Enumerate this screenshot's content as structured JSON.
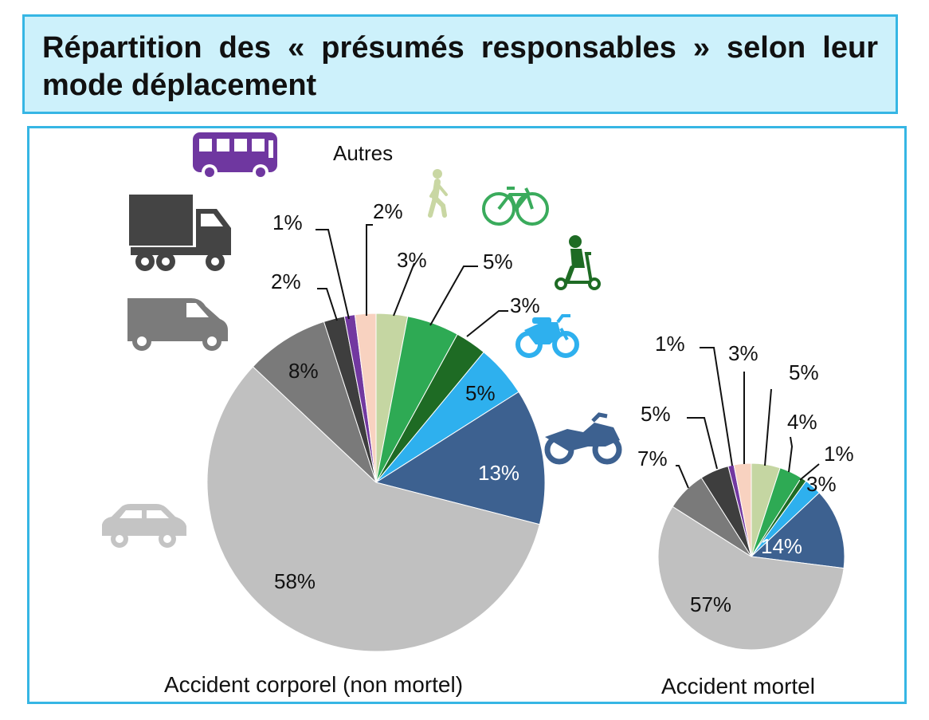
{
  "title": "Répartition des « présumés responsables » selon leur mode déplacement",
  "icons": {
    "bus": "bus-icon",
    "truck": "truck-icon",
    "van": "van-icon",
    "car": "car-icon",
    "pedestrian": "pedestrian-icon",
    "bicycle": "bicycle-icon",
    "scooter": "scooter-icon",
    "moped": "moped-icon",
    "motorcycle": "motorcycle-icon"
  },
  "others_label": "Autres",
  "chart_data": [
    {
      "type": "pie",
      "title": "Accident corporel (non mortel)",
      "start_angle_deg": 0,
      "direction": "clockwise",
      "slices": [
        {
          "name": "Piéton",
          "value": 3,
          "label": "3%",
          "color": "#c5d6a2"
        },
        {
          "name": "Vélo",
          "value": 5,
          "label": "5%",
          "color": "#2eaa54"
        },
        {
          "name": "Trottinette",
          "value": 3,
          "label": "3%",
          "color": "#1e6b24"
        },
        {
          "name": "Cyclomoteur",
          "value": 5,
          "label": "5%",
          "color": "#2eb0ee"
        },
        {
          "name": "Moto",
          "value": 13,
          "label": "13%",
          "color": "#3d6190"
        },
        {
          "name": "Voiture",
          "value": 58,
          "label": "58%",
          "color": "#c0c0c0"
        },
        {
          "name": "Camionnette",
          "value": 8,
          "label": "8%",
          "color": "#7a7a7a"
        },
        {
          "name": "Poids lourd",
          "value": 2,
          "label": "2%",
          "color": "#3e3e3e"
        },
        {
          "name": "Bus",
          "value": 1,
          "label": "1%",
          "color": "#7238a0"
        },
        {
          "name": "Autres",
          "value": 2,
          "label": "2%",
          "color": "#f8d2c0"
        }
      ]
    },
    {
      "type": "pie",
      "title": "Accident mortel",
      "start_angle_deg": 0,
      "direction": "clockwise",
      "slices": [
        {
          "name": "Piéton",
          "value": 5,
          "label": "5%",
          "color": "#c5d6a2"
        },
        {
          "name": "Vélo",
          "value": 4,
          "label": "4%",
          "color": "#2eaa54"
        },
        {
          "name": "Trottinette",
          "value": 1,
          "label": "1%",
          "color": "#1e6b24"
        },
        {
          "name": "Cyclomoteur",
          "value": 3,
          "label": "3%",
          "color": "#2eb0ee"
        },
        {
          "name": "Moto",
          "value": 14,
          "label": "14%",
          "color": "#3d6190"
        },
        {
          "name": "Voiture",
          "value": 57,
          "label": "57%",
          "color": "#c0c0c0"
        },
        {
          "name": "Camionnette",
          "value": 7,
          "label": "7%",
          "color": "#7a7a7a"
        },
        {
          "name": "Poids lourd",
          "value": 5,
          "label": "5%",
          "color": "#3e3e3e"
        },
        {
          "name": "Bus",
          "value": 1,
          "label": "1%",
          "color": "#7238a0"
        },
        {
          "name": "Autres",
          "value": 3,
          "label": "3%",
          "color": "#f8d2c0"
        }
      ]
    }
  ]
}
